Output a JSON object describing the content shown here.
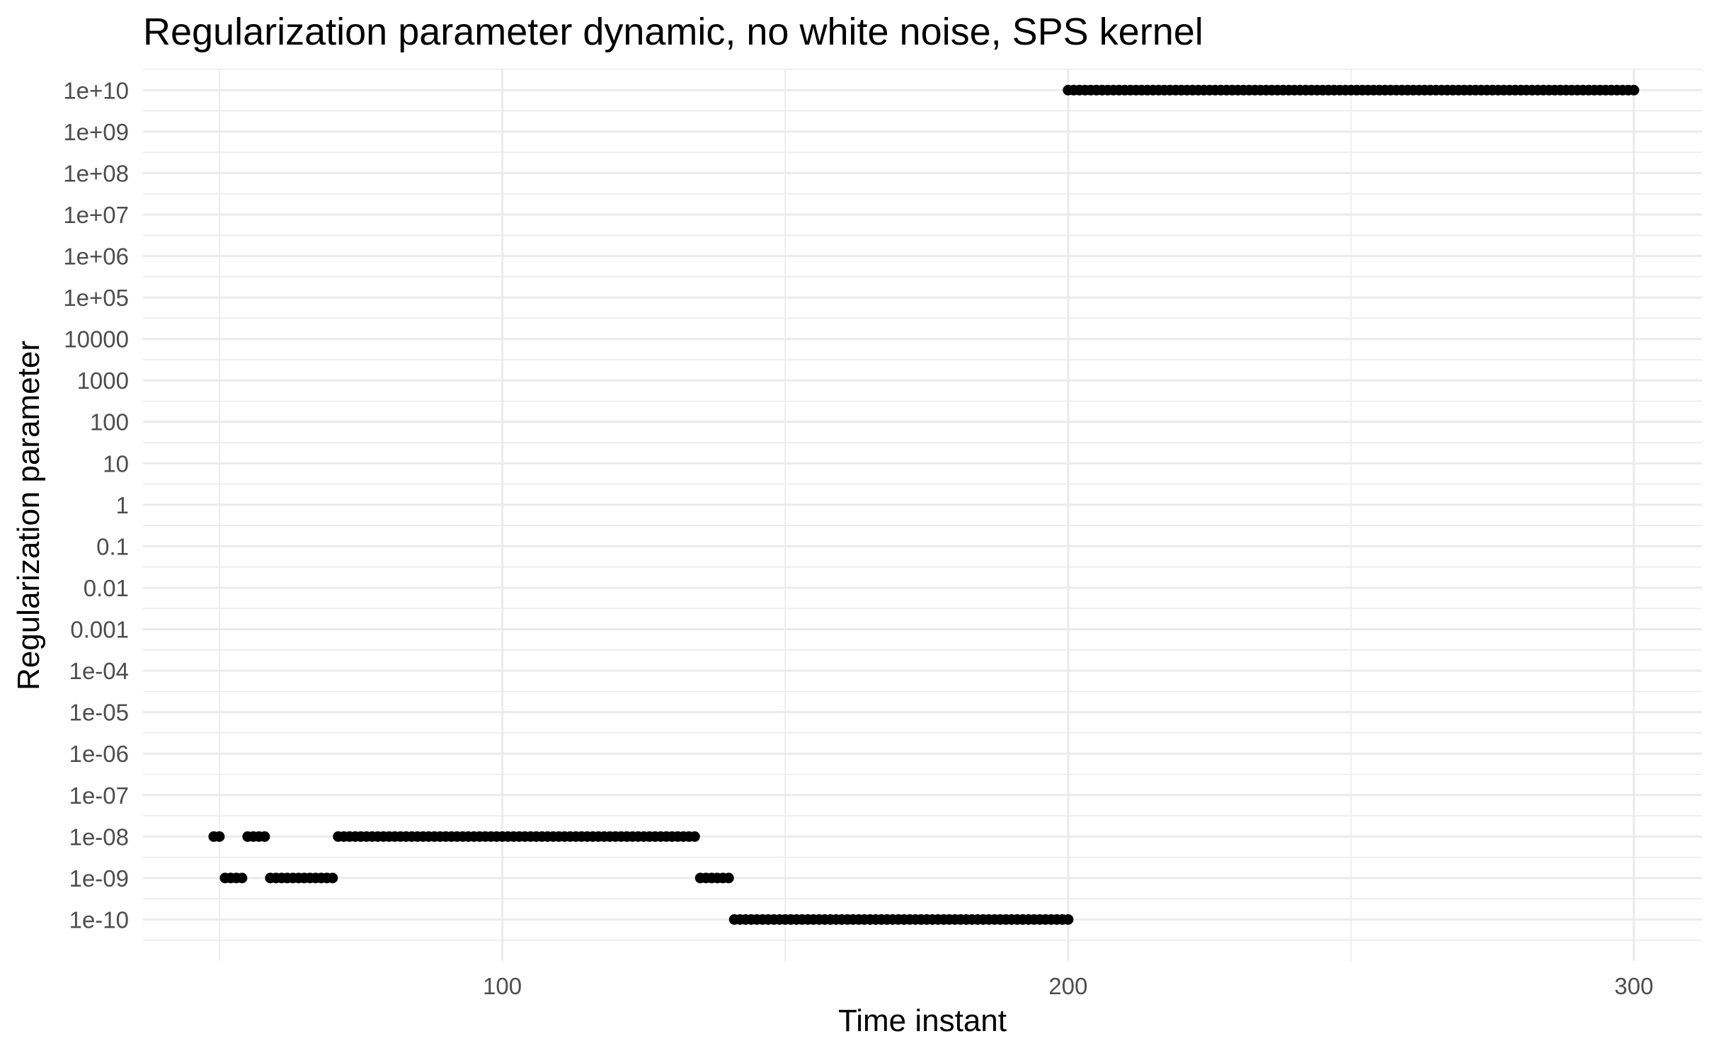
{
  "chart_data": {
    "type": "scatter",
    "title": "Regularization parameter dynamic, no white noise, SPS kernel",
    "xlabel": "Time instant",
    "ylabel": "Regularization parameter",
    "x_scale": "linear",
    "y_scale": "log10",
    "xlim": [
      36.5,
      312
    ],
    "ylim": [
      1e-11,
      31620000000.0
    ],
    "grid": true,
    "legend": "none",
    "x_ticks": [
      100,
      200,
      300
    ],
    "x_tick_labels": [
      "100",
      "200",
      "300"
    ],
    "y_ticks": [
      1e-10,
      1e-09,
      1e-08,
      1e-07,
      1e-06,
      1e-05,
      0.0001,
      0.001,
      0.01,
      0.1,
      1,
      10,
      100,
      1000,
      10000,
      100000.0,
      1000000.0,
      10000000.0,
      100000000.0,
      1000000000.0,
      10000000000.0
    ],
    "y_tick_labels": [
      "1e-10",
      "1e-09",
      "1e-08",
      "1e-07",
      "1e-06",
      "1e-05",
      "1e-04",
      "0.001",
      "0.01",
      "0.1",
      "1",
      "10",
      "100",
      "1000",
      "10000",
      "1e+05",
      "1e+06",
      "1e+07",
      "1e+08",
      "1e+09",
      "1e+10"
    ],
    "point_color": "#000000",
    "series": [
      {
        "segments": [
          {
            "x_from": 49,
            "x_to": 50,
            "y": 1e-08
          },
          {
            "x_from": 51,
            "x_to": 54,
            "y": 1e-09
          },
          {
            "x_from": 55,
            "x_to": 58,
            "y": 1e-08
          },
          {
            "x_from": 59,
            "x_to": 70,
            "y": 1e-09
          },
          {
            "x_from": 71,
            "x_to": 134,
            "y": 1e-08
          },
          {
            "x_from": 135,
            "x_to": 140,
            "y": 1e-09
          },
          {
            "x_from": 141,
            "x_to": 200,
            "y": 1e-10
          },
          {
            "x_from": 200,
            "x_to": 300,
            "y": 10000000000.0
          }
        ]
      }
    ]
  }
}
